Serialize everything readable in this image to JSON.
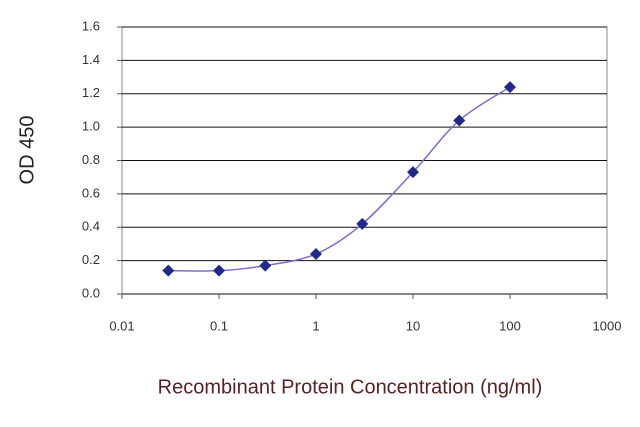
{
  "chart_data": {
    "type": "scatter",
    "ylabel": "OD 450",
    "xlabel": "Recombinant Protein Concentration (ng/ml)",
    "x": [
      0.03,
      0.1,
      0.3,
      1,
      3,
      10,
      30,
      100
    ],
    "values": [
      0.14,
      0.14,
      0.17,
      0.24,
      0.42,
      0.73,
      1.04,
      1.24
    ],
    "marker_color": "#1f2a8a",
    "line_color": "#7a6fd0",
    "xscale": "log",
    "xlim": [
      0.01,
      1000
    ],
    "xticks": [
      0.01,
      0.1,
      1,
      10,
      100,
      1000
    ],
    "ylim": [
      0,
      1.6
    ],
    "yticks": [
      {
        "value": 0,
        "label": "0.0"
      },
      0.2,
      0.4,
      0.6,
      0.8,
      {
        "value": 1,
        "label": "1.0"
      },
      1.2,
      1.4,
      1.6
    ],
    "grid": true
  }
}
